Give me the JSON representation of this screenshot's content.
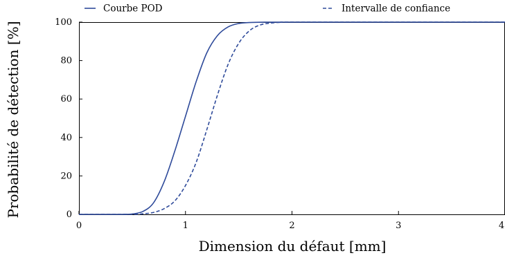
{
  "chart_data": {
    "type": "line",
    "xlabel": "Dimension du défaut [mm]",
    "ylabel": "Probabilité de détection [%]",
    "xlim": [
      0,
      4
    ],
    "ylim": [
      0,
      100
    ],
    "xticks": [
      0,
      1,
      2,
      3,
      4
    ],
    "yticks": [
      0,
      20,
      40,
      60,
      80,
      100
    ],
    "xtick_labels": [
      "0",
      "1",
      "2",
      "3",
      "4"
    ],
    "ytick_labels": [
      "0",
      "20",
      "40",
      "60",
      "80",
      "100"
    ],
    "grid": false,
    "legend_position": "top",
    "series": [
      {
        "name": "Courbe POD",
        "style": "solid",
        "color": "#2e4a9a",
        "x": [
          0,
          0.4,
          0.5,
          0.6,
          0.7,
          0.8,
          0.9,
          1.0,
          1.1,
          1.2,
          1.3,
          1.4,
          1.5,
          1.6,
          1.8,
          2.0,
          3.0,
          4.0
        ],
        "y": [
          0,
          0,
          0.2,
          1.5,
          6,
          17,
          33,
          51,
          69,
          84,
          93,
          97.5,
          99.3,
          99.8,
          100,
          100,
          100,
          100
        ]
      },
      {
        "name": "Intervalle de confiance",
        "style": "dashed",
        "color": "#2e4a9a",
        "x": [
          0,
          0.5,
          0.6,
          0.7,
          0.8,
          0.9,
          1.0,
          1.1,
          1.2,
          1.3,
          1.4,
          1.5,
          1.6,
          1.7,
          1.8,
          1.9,
          2.0,
          3.0,
          4.0
        ],
        "y": [
          0,
          0,
          0.3,
          1,
          3,
          7,
          15,
          27,
          44,
          62,
          78,
          89,
          95.5,
          98.5,
          99.5,
          99.9,
          100,
          100,
          100
        ]
      }
    ]
  }
}
